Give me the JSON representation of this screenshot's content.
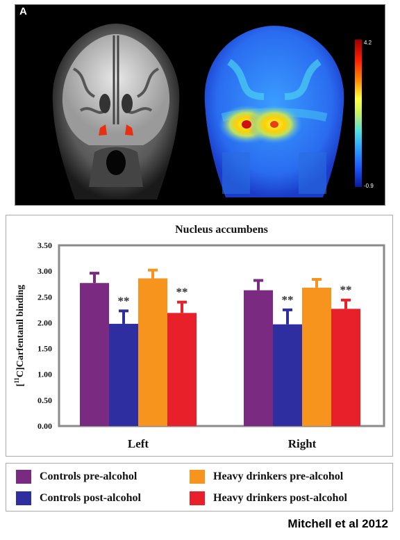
{
  "panel_label": "A",
  "colorbar": {
    "max_label": "4.2",
    "min_label": "-0.9"
  },
  "legend": [
    {
      "label": "Controls pre-alcohol",
      "color": "#7b2a82"
    },
    {
      "label": "Controls post-alcohol",
      "color": "#2e2ea0"
    },
    {
      "label": "Heavy drinkers pre-alcohol",
      "color": "#f7941d"
    },
    {
      "label": "Heavy drinkers  post-alcohol",
      "color": "#e8202a"
    }
  ],
  "citation": "Mitchell et al 2012",
  "chart_data": {
    "type": "bar",
    "title": "Nucleus accumbens",
    "ylabel": "[11C]Carfentanil binding",
    "ylim": [
      0,
      3.5
    ],
    "yticks": [
      "0.00",
      "0.50",
      "1.00",
      "1.50",
      "2.00",
      "2.50",
      "3.00",
      "3.50"
    ],
    "categories": [
      "Left",
      "Right"
    ],
    "series": [
      {
        "name": "Controls pre-alcohol",
        "color": "#7b2a82",
        "values": [
          2.77,
          2.63
        ],
        "errors": [
          0.19,
          0.19
        ],
        "annotation": [
          "",
          ""
        ]
      },
      {
        "name": "Controls post-alcohol",
        "color": "#2e2ea0",
        "values": [
          1.98,
          1.97
        ],
        "errors": [
          0.25,
          0.28
        ],
        "annotation": [
          "**",
          "**"
        ]
      },
      {
        "name": "Heavy drinkers pre-alcohol",
        "color": "#f7941d",
        "values": [
          2.86,
          2.68
        ],
        "errors": [
          0.16,
          0.16
        ],
        "annotation": [
          "",
          ""
        ]
      },
      {
        "name": "Heavy drinkers  post-alcohol",
        "color": "#e8202a",
        "values": [
          2.19,
          2.27
        ],
        "errors": [
          0.21,
          0.17
        ],
        "annotation": [
          "**",
          "**"
        ]
      }
    ]
  }
}
